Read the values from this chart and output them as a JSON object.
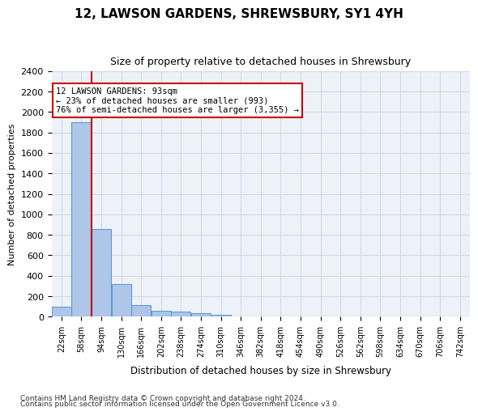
{
  "title_line1": "12, LAWSON GARDENS, SHREWSBURY, SY1 4YH",
  "title_line2": "Size of property relative to detached houses in Shrewsbury",
  "xlabel": "Distribution of detached houses by size in Shrewsbury",
  "ylabel": "Number of detached properties",
  "footnote1": "Contains HM Land Registry data © Crown copyright and database right 2024.",
  "footnote2": "Contains public sector information licensed under the Open Government Licence v3.0.",
  "bin_labels": [
    "22sqm",
    "58sqm",
    "94sqm",
    "130sqm",
    "166sqm",
    "202sqm",
    "238sqm",
    "274sqm",
    "310sqm",
    "346sqm",
    "382sqm",
    "418sqm",
    "454sqm",
    "490sqm",
    "526sqm",
    "562sqm",
    "598sqm",
    "634sqm",
    "670sqm",
    "706sqm",
    "742sqm"
  ],
  "bar_values": [
    100,
    1900,
    860,
    315,
    115,
    58,
    48,
    35,
    22,
    0,
    0,
    0,
    0,
    0,
    0,
    0,
    0,
    0,
    0,
    0,
    0
  ],
  "bar_color": "#aec6e8",
  "bar_edge_color": "#5b9bd5",
  "ylim": [
    0,
    2400
  ],
  "yticks": [
    0,
    200,
    400,
    600,
    800,
    1000,
    1200,
    1400,
    1600,
    1800,
    2000,
    2200,
    2400
  ],
  "property_bin_index": 2,
  "annotation_text_line1": "12 LAWSON GARDENS: 93sqm",
  "annotation_text_line2": "← 23% of detached houses are smaller (993)",
  "annotation_text_line3": "76% of semi-detached houses are larger (3,355) →",
  "annotation_box_color": "#ffffff",
  "annotation_box_edge": "#cc0000",
  "grid_color": "#d0d8e8",
  "background_color": "#eef2f8"
}
